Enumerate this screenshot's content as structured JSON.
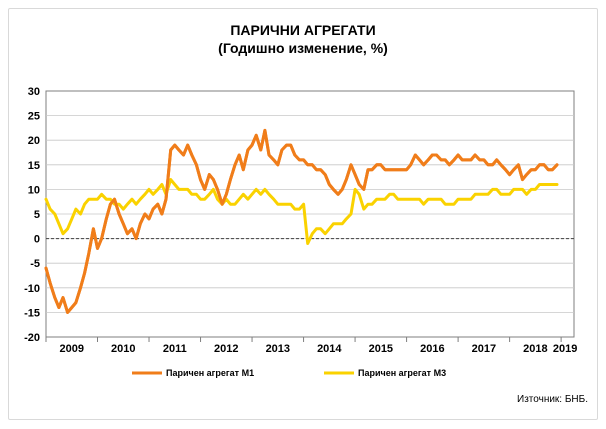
{
  "chart_data": {
    "type": "line",
    "title": "ПАРИЧНИ АГРЕГАТИ",
    "subtitle": "(Годишно изменение, %)",
    "xlabel": "",
    "ylabel": "",
    "xlim": [
      2009.0,
      2019.25
    ],
    "ylim": [
      -20,
      30
    ],
    "yticks": [
      -20,
      -15,
      -10,
      -5,
      0,
      5,
      10,
      15,
      20,
      25,
      30
    ],
    "year_labels": [
      "2009",
      "2010",
      "2011",
      "2012",
      "2013",
      "2014",
      "2015",
      "2016",
      "2017",
      "2018",
      "2019"
    ],
    "grid": true,
    "legend_placement": "bottom",
    "source": "Източник: БНБ.",
    "series": [
      {
        "name": "Паричен агрегат М1",
        "color": "#F07D1A",
        "x": [
          2009.0,
          2009.08,
          2009.17,
          2009.25,
          2009.33,
          2009.42,
          2009.5,
          2009.58,
          2009.67,
          2009.75,
          2009.83,
          2009.92,
          2010.0,
          2010.08,
          2010.17,
          2010.25,
          2010.33,
          2010.42,
          2010.5,
          2010.58,
          2010.67,
          2010.75,
          2010.83,
          2010.92,
          2011.0,
          2011.08,
          2011.17,
          2011.25,
          2011.33,
          2011.42,
          2011.5,
          2011.58,
          2011.67,
          2011.75,
          2011.83,
          2011.92,
          2012.0,
          2012.08,
          2012.17,
          2012.25,
          2012.33,
          2012.42,
          2012.5,
          2012.58,
          2012.67,
          2012.75,
          2012.83,
          2012.92,
          2013.0,
          2013.08,
          2013.17,
          2013.25,
          2013.33,
          2013.42,
          2013.5,
          2013.58,
          2013.67,
          2013.75,
          2013.83,
          2013.92,
          2014.0,
          2014.08,
          2014.17,
          2014.25,
          2014.33,
          2014.42,
          2014.5,
          2014.58,
          2014.67,
          2014.75,
          2014.83,
          2014.92,
          2015.0,
          2015.08,
          2015.17,
          2015.25,
          2015.33,
          2015.42,
          2015.5,
          2015.58,
          2015.67,
          2015.75,
          2015.83,
          2015.92,
          2016.0,
          2016.08,
          2016.17,
          2016.25,
          2016.33,
          2016.42,
          2016.5,
          2016.58,
          2016.67,
          2016.75,
          2016.83,
          2016.92,
          2017.0,
          2017.08,
          2017.17,
          2017.25,
          2017.33,
          2017.42,
          2017.5,
          2017.58,
          2017.67,
          2017.75,
          2017.83,
          2017.92,
          2018.0,
          2018.08,
          2018.17,
          2018.25,
          2018.33,
          2018.42,
          2018.5,
          2018.58,
          2018.67,
          2018.75,
          2018.83,
          2018.92
        ],
        "values": [
          -6,
          -9,
          -12,
          -14,
          -12,
          -15,
          -14,
          -13,
          -10,
          -7,
          -3,
          2,
          -2,
          0,
          4,
          7,
          8,
          5,
          3,
          1,
          2,
          0,
          3,
          5,
          4,
          6,
          7,
          5,
          8,
          18,
          19,
          18,
          17,
          19,
          17,
          15,
          12,
          10,
          13,
          12,
          10,
          7,
          9,
          12,
          15,
          17,
          14,
          18,
          19,
          21,
          18,
          22,
          17,
          16,
          15,
          18,
          19,
          19,
          17,
          16,
          16,
          15,
          15,
          14,
          14,
          13,
          11,
          10,
          9,
          10,
          12,
          15,
          13,
          11,
          10,
          14,
          14,
          15,
          15,
          14,
          14,
          14,
          14,
          14,
          14,
          15,
          17,
          16,
          15,
          16,
          17,
          17,
          16,
          16,
          15,
          16,
          17,
          16,
          16,
          16,
          17,
          16,
          16,
          15,
          15,
          16,
          15,
          14,
          13,
          14,
          15,
          12,
          13,
          14,
          14,
          15,
          15,
          14,
          14,
          15
        ]
      },
      {
        "name": "Паричен агрегат М3",
        "color": "#FAD200",
        "x": [
          2009.0,
          2009.08,
          2009.17,
          2009.25,
          2009.33,
          2009.42,
          2009.5,
          2009.58,
          2009.67,
          2009.75,
          2009.83,
          2009.92,
          2010.0,
          2010.08,
          2010.17,
          2010.25,
          2010.33,
          2010.42,
          2010.5,
          2010.58,
          2010.67,
          2010.75,
          2010.83,
          2010.92,
          2011.0,
          2011.08,
          2011.17,
          2011.25,
          2011.33,
          2011.42,
          2011.5,
          2011.58,
          2011.67,
          2011.75,
          2011.83,
          2011.92,
          2012.0,
          2012.08,
          2012.17,
          2012.25,
          2012.33,
          2012.42,
          2012.5,
          2012.58,
          2012.67,
          2012.75,
          2012.83,
          2012.92,
          2013.0,
          2013.08,
          2013.17,
          2013.25,
          2013.33,
          2013.42,
          2013.5,
          2013.58,
          2013.67,
          2013.75,
          2013.83,
          2013.92,
          2014.0,
          2014.08,
          2014.17,
          2014.25,
          2014.33,
          2014.42,
          2014.5,
          2014.58,
          2014.67,
          2014.75,
          2014.83,
          2014.92,
          2015.0,
          2015.08,
          2015.17,
          2015.25,
          2015.33,
          2015.42,
          2015.5,
          2015.58,
          2015.67,
          2015.75,
          2015.83,
          2015.92,
          2016.0,
          2016.08,
          2016.17,
          2016.25,
          2016.33,
          2016.42,
          2016.5,
          2016.58,
          2016.67,
          2016.75,
          2016.83,
          2016.92,
          2017.0,
          2017.08,
          2017.17,
          2017.25,
          2017.33,
          2017.42,
          2017.5,
          2017.58,
          2017.67,
          2017.75,
          2017.83,
          2017.92,
          2018.0,
          2018.08,
          2018.17,
          2018.25,
          2018.33,
          2018.42,
          2018.5,
          2018.58,
          2018.67,
          2018.75,
          2018.83,
          2018.92
        ],
        "values": [
          8,
          6,
          5,
          3,
          1,
          2,
          4,
          6,
          5,
          7,
          8,
          8,
          8,
          9,
          8,
          8,
          7,
          7,
          6,
          7,
          8,
          7,
          8,
          9,
          10,
          9,
          10,
          11,
          9,
          12,
          11,
          10,
          10,
          10,
          9,
          9,
          8,
          8,
          9,
          10,
          8,
          7,
          8,
          7,
          7,
          8,
          9,
          8,
          9,
          10,
          9,
          10,
          9,
          8,
          7,
          7,
          7,
          7,
          6,
          6,
          7,
          -1,
          1,
          2,
          2,
          1,
          2,
          3,
          3,
          3,
          4,
          5,
          10,
          9,
          6,
          7,
          7,
          8,
          8,
          8,
          9,
          9,
          8,
          8,
          8,
          8,
          8,
          8,
          7,
          8,
          8,
          8,
          8,
          7,
          7,
          7,
          8,
          8,
          8,
          8,
          9,
          9,
          9,
          9,
          10,
          10,
          9,
          9,
          9,
          10,
          10,
          10,
          9,
          10,
          10,
          11,
          11,
          11,
          11,
          11
        ]
      }
    ]
  }
}
